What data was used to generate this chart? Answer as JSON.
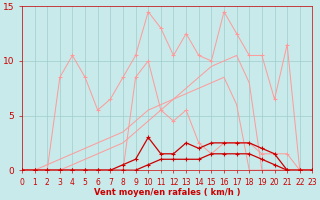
{
  "x": [
    0,
    1,
    2,
    3,
    4,
    5,
    6,
    7,
    8,
    9,
    10,
    11,
    12,
    13,
    14,
    15,
    16,
    17,
    18,
    19,
    20,
    21,
    22,
    23
  ],
  "line_light1": [
    0,
    0,
    0,
    8.5,
    10.5,
    8.5,
    5.5,
    6.5,
    8.5,
    10.5,
    14.5,
    13.0,
    10.5,
    12.5,
    10.5,
    10.0,
    14.5,
    12.5,
    10.5,
    10.5,
    6.5,
    11.5,
    0,
    0
  ],
  "line_light2": [
    0,
    0,
    0,
    0,
    0,
    0,
    0,
    0,
    0,
    8.5,
    10.0,
    5.5,
    4.5,
    5.5,
    2.5,
    1.5,
    2.5,
    2.5,
    2.5,
    1.5,
    1.5,
    1.5,
    0,
    0
  ],
  "line_diag1": [
    0,
    0,
    0,
    0,
    0.5,
    1.0,
    1.5,
    2.0,
    2.5,
    3.5,
    4.5,
    5.5,
    6.5,
    7.5,
    8.5,
    9.5,
    10.0,
    10.5,
    8.0,
    0,
    0,
    0,
    0,
    0
  ],
  "line_diag2": [
    0,
    0,
    0.5,
    1.0,
    1.5,
    2.0,
    2.5,
    3.0,
    3.5,
    4.5,
    5.5,
    6.0,
    6.5,
    7.0,
    7.5,
    8.0,
    8.5,
    6.0,
    0,
    0,
    0,
    0,
    0,
    0
  ],
  "line_dark1": [
    0,
    0,
    0,
    0,
    0,
    0,
    0,
    0,
    0.5,
    1.0,
    3.0,
    1.5,
    1.5,
    2.5,
    2.0,
    2.5,
    2.5,
    2.5,
    2.5,
    2.0,
    1.5,
    0,
    0,
    0
  ],
  "line_dark2": [
    0,
    0,
    0,
    0,
    0,
    0,
    0,
    0,
    0,
    0,
    0.5,
    1.0,
    1.0,
    1.0,
    1.0,
    1.5,
    1.5,
    1.5,
    1.5,
    1.0,
    0.5,
    0,
    0,
    0
  ],
  "bg_color": "#c8eaea",
  "grid_color": "#a0cccc",
  "line_light_color": "#ff9999",
  "line_dark_color": "#cc0000",
  "xlabel": "Vent moyen/en rafales ( km/h )",
  "ylim": [
    0,
    15
  ],
  "xlim": [
    0,
    23
  ],
  "yticks": [
    0,
    5,
    10,
    15
  ],
  "xticks": [
    0,
    1,
    2,
    3,
    4,
    5,
    6,
    7,
    8,
    9,
    10,
    11,
    12,
    13,
    14,
    15,
    16,
    17,
    18,
    19,
    20,
    21,
    22,
    23
  ],
  "tick_fontsize": 5.5,
  "xlabel_fontsize": 6.0,
  "label_color": "#cc0000"
}
